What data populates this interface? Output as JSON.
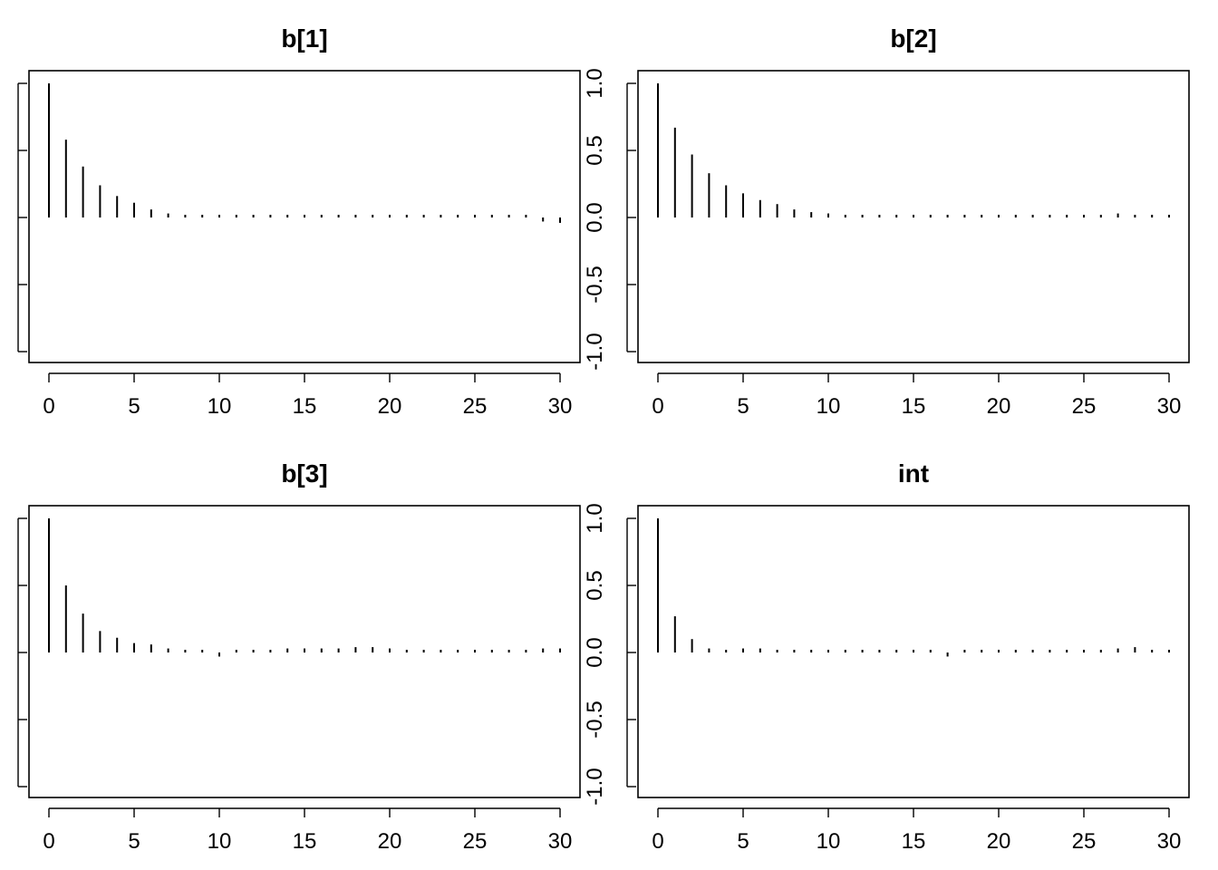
{
  "chart_data": [
    {
      "type": "bar",
      "title": "b[1]",
      "x": [
        0,
        1,
        2,
        3,
        4,
        5,
        6,
        7,
        8,
        9,
        10,
        11,
        12,
        13,
        14,
        15,
        16,
        17,
        18,
        19,
        20,
        21,
        22,
        23,
        24,
        25,
        26,
        27,
        28,
        29,
        30
      ],
      "values": [
        1.0,
        0.58,
        0.38,
        0.24,
        0.16,
        0.11,
        0.06,
        0.03,
        0.015,
        0.01,
        0.01,
        0.01,
        0.005,
        0.005,
        -0.01,
        0.01,
        0.015,
        0.01,
        0.01,
        0.01,
        0.01,
        0.015,
        0.01,
        0.01,
        0.01,
        0.01,
        0.005,
        0.005,
        0.005,
        -0.03,
        -0.04
      ],
      "xlim": [
        0,
        30
      ],
      "ylim": [
        -1,
        1
      ],
      "x_ticks": [
        "0",
        "5",
        "10",
        "15",
        "20",
        "25",
        "30"
      ],
      "y_ticks": [
        "-1.0",
        "-0.5",
        "0.0",
        "0.5",
        "1.0"
      ],
      "show_y_labels": false
    },
    {
      "type": "bar",
      "title": "b[2]",
      "x": [
        0,
        1,
        2,
        3,
        4,
        5,
        6,
        7,
        8,
        9,
        10,
        11,
        12,
        13,
        14,
        15,
        16,
        17,
        18,
        19,
        20,
        21,
        22,
        23,
        24,
        25,
        26,
        27,
        28,
        29,
        30
      ],
      "values": [
        1.0,
        0.67,
        0.47,
        0.33,
        0.24,
        0.18,
        0.13,
        0.1,
        0.06,
        0.04,
        0.03,
        0.015,
        0.01,
        0.01,
        -0.01,
        0.01,
        0.01,
        0.015,
        0.01,
        0.01,
        0.01,
        0.01,
        0.01,
        0.01,
        0.02,
        0.02,
        0.02,
        0.03,
        0.02,
        0.02,
        0.01
      ],
      "xlim": [
        0,
        30
      ],
      "ylim": [
        -1,
        1
      ],
      "x_ticks": [
        "0",
        "5",
        "10",
        "15",
        "20",
        "25",
        "30"
      ],
      "y_ticks": [
        "-1.0",
        "-0.5",
        "0.0",
        "0.5",
        "1.0"
      ],
      "show_y_labels": true
    },
    {
      "type": "bar",
      "title": "b[3]",
      "x": [
        0,
        1,
        2,
        3,
        4,
        5,
        6,
        7,
        8,
        9,
        10,
        11,
        12,
        13,
        14,
        15,
        16,
        17,
        18,
        19,
        20,
        21,
        22,
        23,
        24,
        25,
        26,
        27,
        28,
        29,
        30
      ],
      "values": [
        1.0,
        0.5,
        0.29,
        0.16,
        0.11,
        0.07,
        0.06,
        0.03,
        0.01,
        -0.02,
        -0.03,
        -0.01,
        0.01,
        0.01,
        0.03,
        0.03,
        0.03,
        0.03,
        0.04,
        0.04,
        0.03,
        0.02,
        0.02,
        0.02,
        0.01,
        0.01,
        0.01,
        0.01,
        0.01,
        0.03,
        0.03
      ],
      "xlim": [
        0,
        30
      ],
      "ylim": [
        -1,
        1
      ],
      "x_ticks": [
        "0",
        "5",
        "10",
        "15",
        "20",
        "25",
        "30"
      ],
      "y_ticks": [
        "-1.0",
        "-0.5",
        "0.0",
        "0.5",
        "1.0"
      ],
      "show_y_labels": false
    },
    {
      "type": "bar",
      "title": "int",
      "x": [
        0,
        1,
        2,
        3,
        4,
        5,
        6,
        7,
        8,
        9,
        10,
        11,
        12,
        13,
        14,
        15,
        16,
        17,
        18,
        19,
        20,
        21,
        22,
        23,
        24,
        25,
        26,
        27,
        28,
        29,
        30
      ],
      "values": [
        1.0,
        0.27,
        0.1,
        0.03,
        0.02,
        0.03,
        0.03,
        0.01,
        0.005,
        0.005,
        -0.02,
        -0.01,
        0.005,
        0.005,
        0.01,
        0.02,
        0.01,
        -0.03,
        -0.01,
        0.01,
        0.01,
        0.01,
        0.01,
        0.005,
        0.005,
        0.01,
        0.02,
        0.03,
        0.04,
        0.02,
        0.02
      ],
      "xlim": [
        0,
        30
      ],
      "ylim": [
        -1,
        1
      ],
      "x_ticks": [
        "0",
        "5",
        "10",
        "15",
        "20",
        "25",
        "30"
      ],
      "y_ticks": [
        "-1.0",
        "-0.5",
        "0.0",
        "0.5",
        "1.0"
      ],
      "show_y_labels": true
    }
  ]
}
